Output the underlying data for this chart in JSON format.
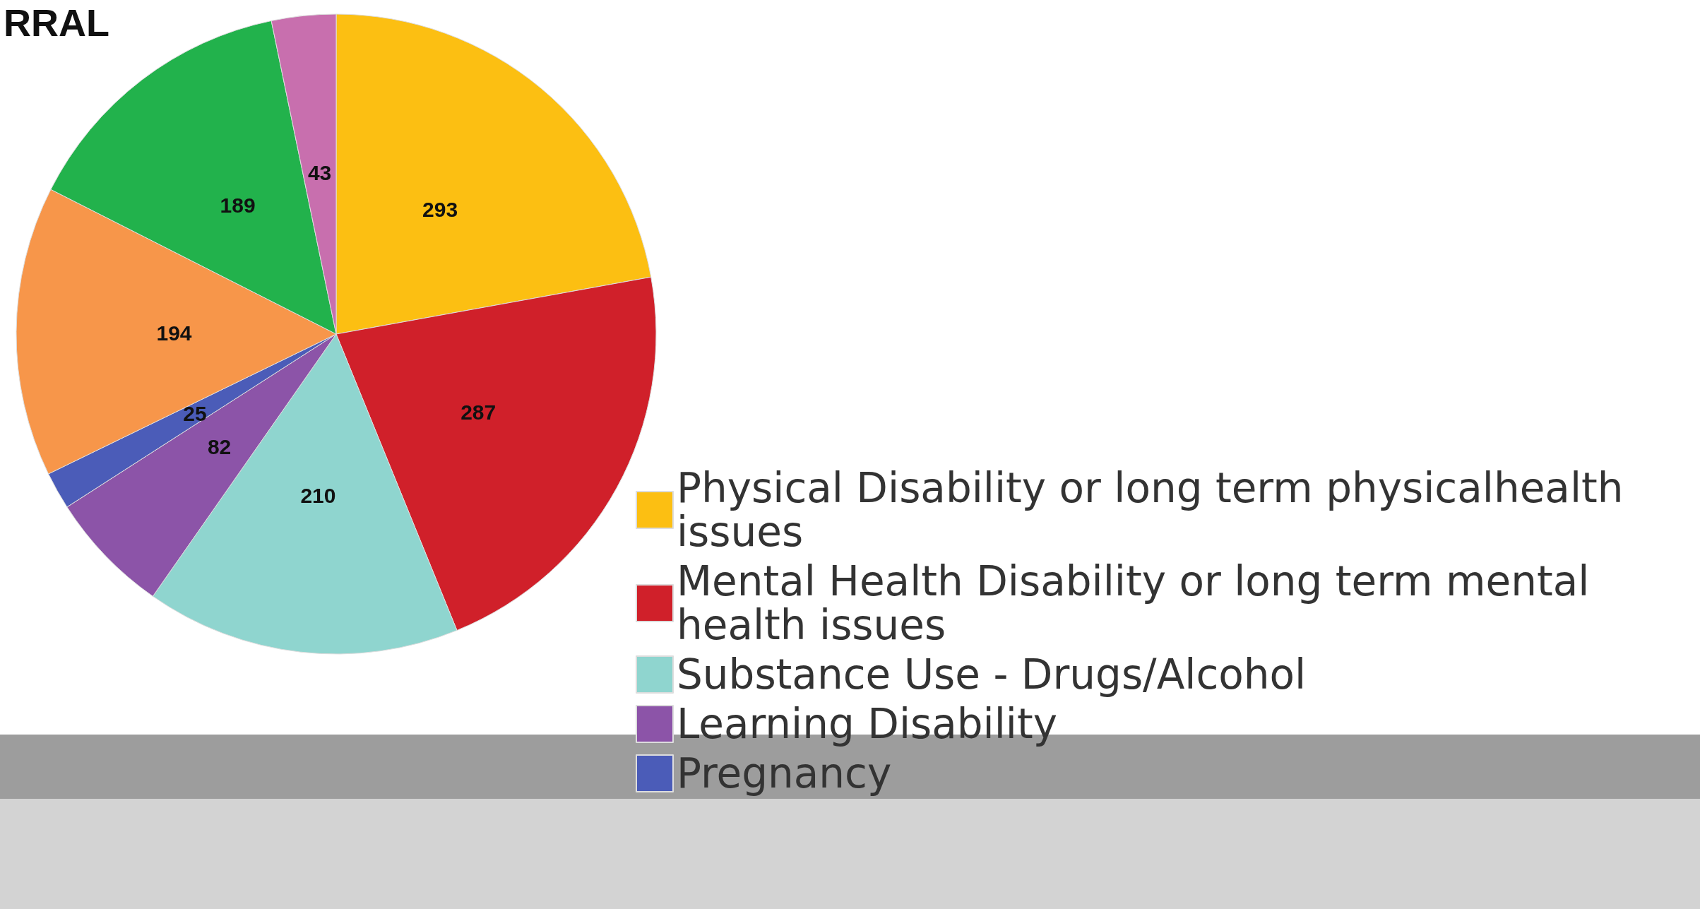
{
  "chart_data": {
    "type": "pie",
    "title": "RRAL",
    "categories": [
      "Physical Disability or long term physicalhealth issues",
      "Mental Health Disability or long term mental health issues",
      "Substance Use - Drugs/Alcohol",
      "Learning Disability",
      "Pregnancy",
      null,
      null,
      null
    ],
    "values": [
      293,
      287,
      210,
      82,
      25,
      194,
      189,
      43
    ],
    "colors": [
      "#fcbf12",
      "#d0202a",
      "#8fd5cf",
      "#8c54a8",
      "#4b5cb8",
      "#f7964a",
      "#22b24c",
      "#c86fae"
    ],
    "data_labels": true,
    "legend": "bottom right"
  }
}
